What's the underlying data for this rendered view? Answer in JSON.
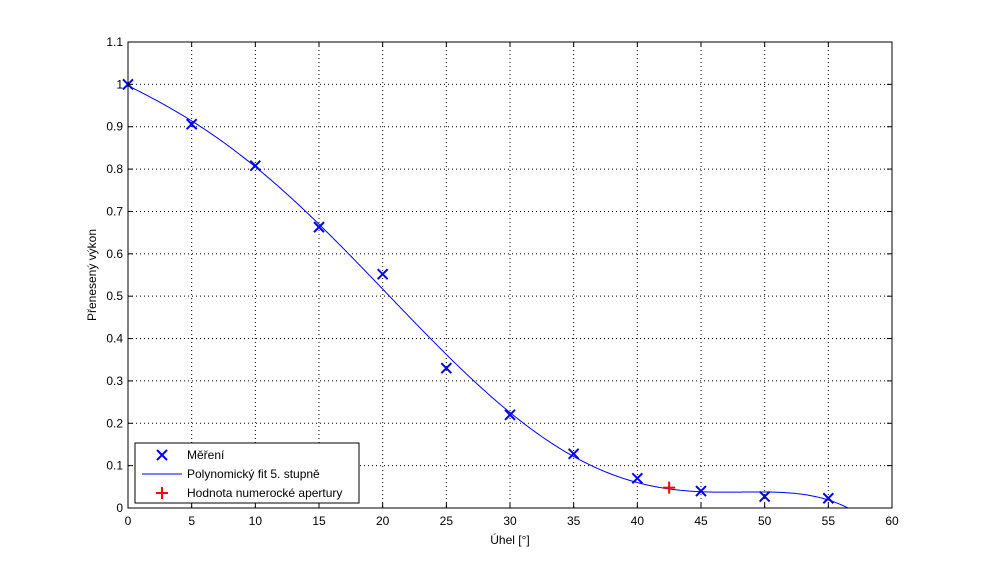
{
  "chart_data": {
    "type": "scatter",
    "title": "",
    "xlabel": "Úhel [°]",
    "ylabel": "Přenesený výkon",
    "xlim": [
      0,
      60
    ],
    "ylim": [
      0,
      1.1
    ],
    "xticks": [
      0,
      5,
      10,
      15,
      20,
      25,
      30,
      35,
      40,
      45,
      50,
      55,
      60
    ],
    "yticks": [
      0,
      0.1,
      0.2,
      0.3,
      0.4,
      0.5,
      0.6,
      0.7,
      0.8,
      0.9,
      1,
      1.1
    ],
    "grid": true,
    "legend_placement": "bottom-left",
    "series": [
      {
        "name": "Měření",
        "kind": "markers",
        "marker": "x",
        "color": "#0000ff",
        "x": [
          0,
          5,
          10,
          15,
          20,
          25,
          30,
          35,
          40,
          45,
          50,
          55
        ],
        "y": [
          1.0,
          0.906,
          0.808,
          0.663,
          0.552,
          0.33,
          0.22,
          0.128,
          0.07,
          0.04,
          0.027,
          0.023
        ]
      },
      {
        "name": "Polynomický fit 5. stupně",
        "kind": "line",
        "fit_degree": 5,
        "color": "#0000ff"
      },
      {
        "name": "Hodnota numerocké apertury",
        "kind": "markers",
        "marker": "+",
        "color": "#ff0000",
        "x": [
          42.5
        ],
        "y": [
          0.048
        ]
      }
    ]
  }
}
